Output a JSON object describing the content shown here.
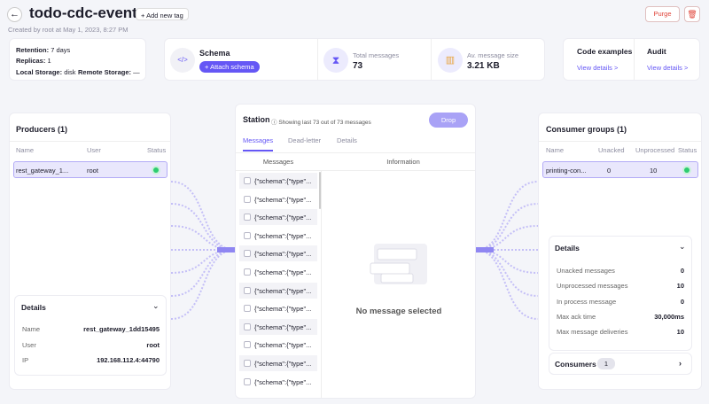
{
  "header": {
    "title": "todo-cdc-events",
    "add_tag": "Add new tag",
    "created": "Created by root at May 1, 2023, 8:27 PM",
    "purge": "Purge"
  },
  "info": [
    {
      "label": "Retention:",
      "value": "7 days"
    },
    {
      "label": "Replicas:",
      "value": "1"
    },
    {
      "label": "Local Storage:",
      "value": "disk"
    },
    {
      "label": "Remote Storage:",
      "value": "—"
    }
  ],
  "schema": {
    "title": "Schema",
    "button": "Attach schema"
  },
  "total_messages": {
    "label": "Total messages",
    "value": "73"
  },
  "avg_size": {
    "label": "Av. message size",
    "value": "3.21 KB"
  },
  "code_examples": {
    "title": "Code examples",
    "link": "View details >"
  },
  "audit": {
    "title": "Audit",
    "link": "View details >"
  },
  "producers": {
    "title": "Producers (1)",
    "columns": [
      "Name",
      "User",
      "Status"
    ],
    "rows": [
      [
        "rest_gateway_1...",
        "root"
      ]
    ]
  },
  "producer_details": {
    "title": "Details",
    "rows": [
      {
        "label": "Name",
        "value": "rest_gateway_1dd15495"
      },
      {
        "label": "User",
        "value": "root"
      },
      {
        "label": "IP",
        "value": "192.168.112.4:44790"
      }
    ]
  },
  "station": {
    "title": "Station",
    "note": "Showing last 73 out of 73 messages",
    "drop": "Drop",
    "tabs": [
      "Messages",
      "Dead-letter",
      "Details"
    ],
    "columns": [
      "Messages",
      "Information"
    ],
    "messages": [
      "{\"schema\":{\"type\"...",
      "{\"schema\":{\"type\"...",
      "{\"schema\":{\"type\"...",
      "{\"schema\":{\"type\"...",
      "{\"schema\":{\"type\"...",
      "{\"schema\":{\"type\"...",
      "{\"schema\":{\"type\"...",
      "{\"schema\":{\"type\"...",
      "{\"schema\":{\"type\"...",
      "{\"schema\":{\"type\"...",
      "{\"schema\":{\"type\"...",
      "{\"schema\":{\"type\"..."
    ],
    "empty": "No message selected"
  },
  "consumers": {
    "title": "Consumer groups (1)",
    "columns": [
      "Name",
      "Unacked",
      "Unprocessed",
      "Status"
    ],
    "rows": [
      [
        "printing-con...",
        "0",
        "10"
      ]
    ]
  },
  "consumer_details": {
    "title": "Details",
    "rows": [
      {
        "label": "Unacked messages",
        "value": "0"
      },
      {
        "label": "Unprocessed messages",
        "value": "10"
      },
      {
        "label": "In process message",
        "value": "0"
      },
      {
        "label": "Max ack time",
        "value": "30,000ms"
      },
      {
        "label": "Max message deliveries",
        "value": "10"
      }
    ]
  },
  "consumers_footer": {
    "label": "Consumers",
    "count": "1"
  }
}
